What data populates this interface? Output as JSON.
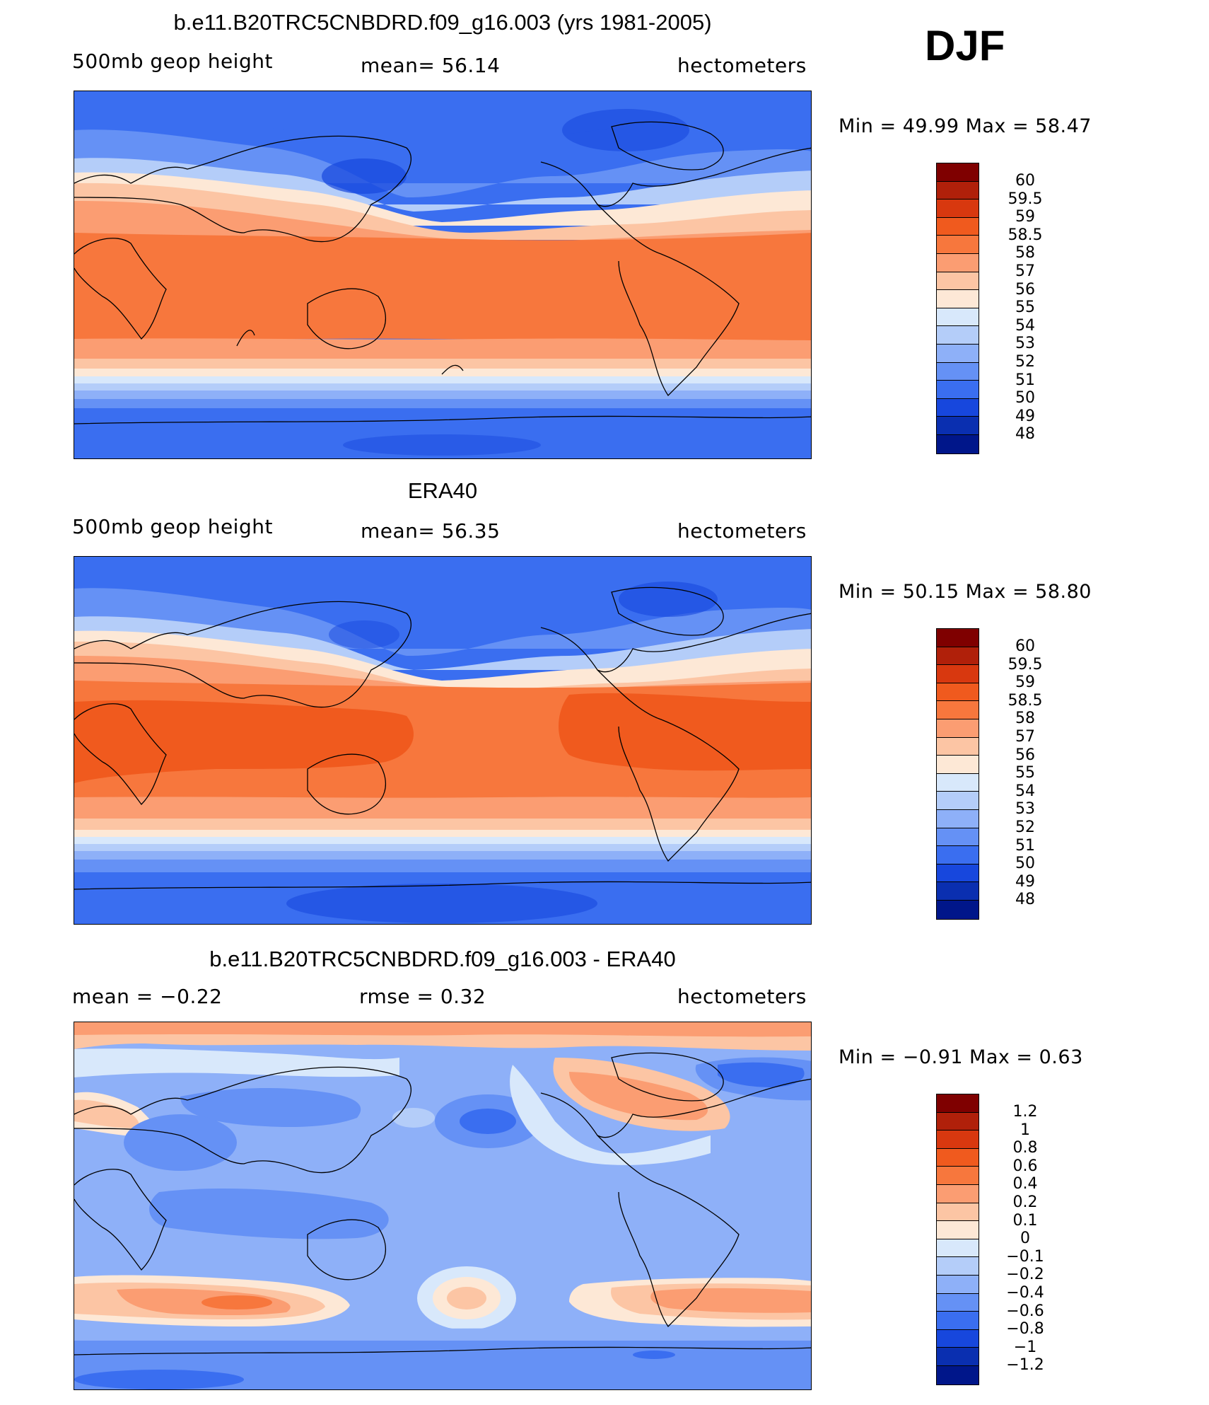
{
  "season": "DJF",
  "panels": [
    {
      "title": "b.e11.B20TRC5CNBDRD.f09_g16.003 (yrs 1981-2005)",
      "left": "500mb  geop  height",
      "center": "mean=   56.14",
      "right": "hectometers",
      "minmax": "Min  =    49.99  Max  =    58.47",
      "levels": [
        "60",
        "59.5",
        "59",
        "58.5",
        "58",
        "57",
        "56",
        "55",
        "54",
        "53",
        "52",
        "51",
        "50",
        "49",
        "48"
      ],
      "colors": [
        "#7f0000",
        "#b0200a",
        "#d8380f",
        "#f05a1e",
        "#f7773d",
        "#fb9d72",
        "#fcc5a4",
        "#fde8d6",
        "#d8e8fb",
        "#b4cdf9",
        "#8eb0f8",
        "#6591f5",
        "#3a6ef0",
        "#1747dd",
        "#0a2fb0",
        "#00168a"
      ]
    },
    {
      "title": "ERA40",
      "left": "500mb  geop  height",
      "center": "mean=   56.35",
      "right": "hectometers",
      "minmax": "Min  =    50.15  Max  =    58.80",
      "levels": [
        "60",
        "59.5",
        "59",
        "58.5",
        "58",
        "57",
        "56",
        "55",
        "54",
        "53",
        "52",
        "51",
        "50",
        "49",
        "48"
      ],
      "colors": [
        "#7f0000",
        "#b0200a",
        "#d8380f",
        "#f05a1e",
        "#f7773d",
        "#fb9d72",
        "#fcc5a4",
        "#fde8d6",
        "#d8e8fb",
        "#b4cdf9",
        "#8eb0f8",
        "#6591f5",
        "#3a6ef0",
        "#1747dd",
        "#0a2fb0",
        "#00168a"
      ]
    },
    {
      "title": "b.e11.B20TRC5CNBDRD.f09_g16.003 - ERA40",
      "left": "mean  =    −0.22",
      "center": "rmse  =     0.32",
      "right": "hectometers",
      "minmax": "Min  =   −0.91  Max  =     0.63",
      "levels": [
        "1.2",
        "1",
        "0.8",
        "0.6",
        "0.4",
        "0.2",
        "0.1",
        "0",
        "−0.1",
        "−0.2",
        "−0.4",
        "−0.6",
        "−0.8",
        "−1",
        "−1.2"
      ],
      "colors": [
        "#7f0000",
        "#b0200a",
        "#d8380f",
        "#f05a1e",
        "#f7773d",
        "#fb9d72",
        "#fcc5a4",
        "#fde8d6",
        "#d8e8fb",
        "#b4cdf9",
        "#8eb0f8",
        "#6591f5",
        "#3a6ef0",
        "#1747dd",
        "#0a2fb0",
        "#00168a"
      ]
    }
  ]
}
